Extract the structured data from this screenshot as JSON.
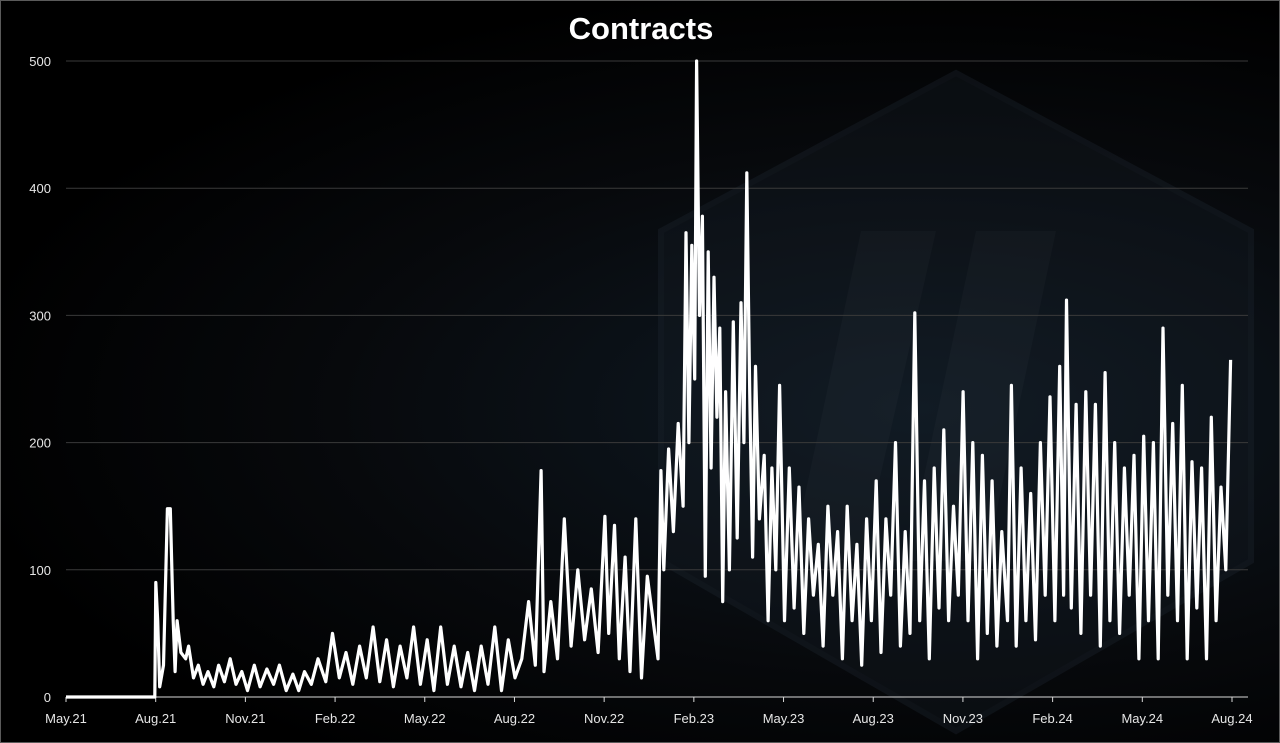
{
  "chart_data": {
    "type": "line",
    "title": "Contracts",
    "xlabel": "",
    "ylabel": "",
    "ylim": [
      0,
      500
    ],
    "y_ticks": [
      0,
      100,
      200,
      300,
      400,
      500
    ],
    "x_ticks": [
      "May.21",
      "Aug.21",
      "Nov.21",
      "Feb.22",
      "May.22",
      "Aug.22",
      "Nov.22",
      "Feb.23",
      "May.23",
      "Aug.23",
      "Nov.23",
      "Feb.24",
      "May.24",
      "Aug.24"
    ],
    "grid": "horizontal",
    "line_color": "#ffffff",
    "x_start": "2021-05-01",
    "x_end": "2024-09-06",
    "series": [
      {
        "points": [
          [
            "2021-05-01",
            0
          ],
          [
            "2021-08-01",
            0
          ],
          [
            "2021-08-02",
            90
          ],
          [
            "2021-08-04",
            60
          ],
          [
            "2021-08-06",
            8
          ],
          [
            "2021-08-10",
            25
          ],
          [
            "2021-08-14",
            148
          ],
          [
            "2021-08-17",
            148
          ],
          [
            "2021-08-20",
            60
          ],
          [
            "2021-08-22",
            20
          ],
          [
            "2021-08-24",
            60
          ],
          [
            "2021-08-28",
            35
          ],
          [
            "2021-09-02",
            30
          ],
          [
            "2021-09-05",
            40
          ],
          [
            "2021-09-10",
            15
          ],
          [
            "2021-09-15",
            25
          ],
          [
            "2021-09-20",
            10
          ],
          [
            "2021-09-25",
            20
          ],
          [
            "2021-10-01",
            8
          ],
          [
            "2021-10-06",
            25
          ],
          [
            "2021-10-12",
            12
          ],
          [
            "2021-10-18",
            30
          ],
          [
            "2021-10-24",
            10
          ],
          [
            "2021-10-30",
            20
          ],
          [
            "2021-11-05",
            5
          ],
          [
            "2021-11-12",
            25
          ],
          [
            "2021-11-18",
            8
          ],
          [
            "2021-11-25",
            22
          ],
          [
            "2021-12-02",
            10
          ],
          [
            "2021-12-08",
            25
          ],
          [
            "2021-12-15",
            5
          ],
          [
            "2021-12-22",
            18
          ],
          [
            "2021-12-28",
            5
          ],
          [
            "2022-01-03",
            20
          ],
          [
            "2022-01-10",
            10
          ],
          [
            "2022-01-17",
            30
          ],
          [
            "2022-01-25",
            12
          ],
          [
            "2022-02-01",
            50
          ],
          [
            "2022-02-08",
            15
          ],
          [
            "2022-02-15",
            35
          ],
          [
            "2022-02-22",
            10
          ],
          [
            "2022-03-01",
            40
          ],
          [
            "2022-03-08",
            15
          ],
          [
            "2022-03-15",
            55
          ],
          [
            "2022-03-22",
            12
          ],
          [
            "2022-03-29",
            45
          ],
          [
            "2022-04-05",
            8
          ],
          [
            "2022-04-12",
            40
          ],
          [
            "2022-04-19",
            15
          ],
          [
            "2022-04-26",
            55
          ],
          [
            "2022-05-03",
            10
          ],
          [
            "2022-05-10",
            45
          ],
          [
            "2022-05-17",
            5
          ],
          [
            "2022-05-24",
            55
          ],
          [
            "2022-05-31",
            10
          ],
          [
            "2022-06-07",
            40
          ],
          [
            "2022-06-14",
            8
          ],
          [
            "2022-06-21",
            35
          ],
          [
            "2022-06-28",
            5
          ],
          [
            "2022-07-05",
            40
          ],
          [
            "2022-07-12",
            10
          ],
          [
            "2022-07-19",
            55
          ],
          [
            "2022-07-26",
            5
          ],
          [
            "2022-08-02",
            45
          ],
          [
            "2022-08-09",
            15
          ],
          [
            "2022-08-16",
            30
          ],
          [
            "2022-08-23",
            75
          ],
          [
            "2022-08-30",
            25
          ],
          [
            "2022-09-05",
            178
          ],
          [
            "2022-09-08",
            20
          ],
          [
            "2022-09-15",
            75
          ],
          [
            "2022-09-22",
            30
          ],
          [
            "2022-09-29",
            140
          ],
          [
            "2022-10-06",
            40
          ],
          [
            "2022-10-13",
            100
          ],
          [
            "2022-10-20",
            45
          ],
          [
            "2022-10-27",
            85
          ],
          [
            "2022-11-03",
            35
          ],
          [
            "2022-11-10",
            142
          ],
          [
            "2022-11-14",
            50
          ],
          [
            "2022-11-20",
            135
          ],
          [
            "2022-11-25",
            30
          ],
          [
            "2022-12-01",
            110
          ],
          [
            "2022-12-06",
            20
          ],
          [
            "2022-12-12",
            140
          ],
          [
            "2022-12-18",
            15
          ],
          [
            "2022-12-24",
            95
          ],
          [
            "2022-12-30",
            60
          ],
          [
            "2023-01-04",
            30
          ],
          [
            "2023-01-07",
            178
          ],
          [
            "2023-01-10",
            100
          ],
          [
            "2023-01-15",
            195
          ],
          [
            "2023-01-20",
            130
          ],
          [
            "2023-01-25",
            215
          ],
          [
            "2023-01-30",
            150
          ],
          [
            "2023-02-02",
            365
          ],
          [
            "2023-02-05",
            200
          ],
          [
            "2023-02-08",
            355
          ],
          [
            "2023-02-11",
            250
          ],
          [
            "2023-02-13",
            500
          ],
          [
            "2023-02-16",
            300
          ],
          [
            "2023-02-19",
            378
          ],
          [
            "2023-02-22",
            95
          ],
          [
            "2023-02-25",
            350
          ],
          [
            "2023-02-28",
            180
          ],
          [
            "2023-03-03",
            330
          ],
          [
            "2023-03-06",
            220
          ],
          [
            "2023-03-09",
            290
          ],
          [
            "2023-03-12",
            75
          ],
          [
            "2023-03-15",
            240
          ],
          [
            "2023-03-19",
            100
          ],
          [
            "2023-03-23",
            295
          ],
          [
            "2023-03-27",
            125
          ],
          [
            "2023-03-31",
            310
          ],
          [
            "2023-04-03",
            200
          ],
          [
            "2023-04-06",
            412
          ],
          [
            "2023-04-09",
            240
          ],
          [
            "2023-04-12",
            110
          ],
          [
            "2023-04-15",
            260
          ],
          [
            "2023-04-19",
            140
          ],
          [
            "2023-04-24",
            190
          ],
          [
            "2023-04-28",
            60
          ],
          [
            "2023-05-02",
            180
          ],
          [
            "2023-05-06",
            100
          ],
          [
            "2023-05-10",
            245
          ],
          [
            "2023-05-15",
            60
          ],
          [
            "2023-05-20",
            180
          ],
          [
            "2023-05-25",
            70
          ],
          [
            "2023-05-30",
            165
          ],
          [
            "2023-06-04",
            50
          ],
          [
            "2023-06-09",
            140
          ],
          [
            "2023-06-14",
            80
          ],
          [
            "2023-06-19",
            120
          ],
          [
            "2023-06-24",
            40
          ],
          [
            "2023-06-29",
            150
          ],
          [
            "2023-07-04",
            80
          ],
          [
            "2023-07-09",
            130
          ],
          [
            "2023-07-14",
            30
          ],
          [
            "2023-07-19",
            150
          ],
          [
            "2023-07-24",
            60
          ],
          [
            "2023-07-29",
            120
          ],
          [
            "2023-08-03",
            25
          ],
          [
            "2023-08-08",
            140
          ],
          [
            "2023-08-13",
            60
          ],
          [
            "2023-08-18",
            170
          ],
          [
            "2023-08-23",
            35
          ],
          [
            "2023-08-28",
            140
          ],
          [
            "2023-09-02",
            80
          ],
          [
            "2023-09-07",
            200
          ],
          [
            "2023-09-12",
            40
          ],
          [
            "2023-09-17",
            130
          ],
          [
            "2023-09-22",
            50
          ],
          [
            "2023-09-27",
            302
          ],
          [
            "2023-10-02",
            60
          ],
          [
            "2023-10-07",
            170
          ],
          [
            "2023-10-12",
            30
          ],
          [
            "2023-10-17",
            180
          ],
          [
            "2023-10-22",
            70
          ],
          [
            "2023-10-27",
            210
          ],
          [
            "2023-11-01",
            60
          ],
          [
            "2023-11-06",
            150
          ],
          [
            "2023-11-11",
            80
          ],
          [
            "2023-11-16",
            240
          ],
          [
            "2023-11-21",
            60
          ],
          [
            "2023-11-26",
            200
          ],
          [
            "2023-12-01",
            30
          ],
          [
            "2023-12-06",
            190
          ],
          [
            "2023-12-11",
            50
          ],
          [
            "2023-12-16",
            170
          ],
          [
            "2023-12-21",
            40
          ],
          [
            "2023-12-26",
            130
          ],
          [
            "2024-01-01",
            60
          ],
          [
            "2024-01-05",
            245
          ],
          [
            "2024-01-10",
            40
          ],
          [
            "2024-01-15",
            180
          ],
          [
            "2024-01-20",
            60
          ],
          [
            "2024-01-25",
            160
          ],
          [
            "2024-01-30",
            45
          ],
          [
            "2024-02-04",
            200
          ],
          [
            "2024-02-09",
            80
          ],
          [
            "2024-02-14",
            236
          ],
          [
            "2024-02-19",
            60
          ],
          [
            "2024-02-24",
            260
          ],
          [
            "2024-02-28",
            80
          ],
          [
            "2024-03-02",
            312
          ],
          [
            "2024-03-07",
            70
          ],
          [
            "2024-03-12",
            230
          ],
          [
            "2024-03-17",
            50
          ],
          [
            "2024-03-22",
            240
          ],
          [
            "2024-03-27",
            80
          ],
          [
            "2024-04-01",
            230
          ],
          [
            "2024-04-06",
            40
          ],
          [
            "2024-04-11",
            255
          ],
          [
            "2024-04-16",
            60
          ],
          [
            "2024-04-21",
            200
          ],
          [
            "2024-04-26",
            50
          ],
          [
            "2024-05-01",
            180
          ],
          [
            "2024-05-06",
            80
          ],
          [
            "2024-05-11",
            190
          ],
          [
            "2024-05-16",
            30
          ],
          [
            "2024-05-21",
            205
          ],
          [
            "2024-05-26",
            60
          ],
          [
            "2024-05-31",
            200
          ],
          [
            "2024-06-05",
            30
          ],
          [
            "2024-06-10",
            290
          ],
          [
            "2024-06-15",
            80
          ],
          [
            "2024-06-20",
            215
          ],
          [
            "2024-06-25",
            60
          ],
          [
            "2024-06-30",
            245
          ],
          [
            "2024-07-05",
            30
          ],
          [
            "2024-07-10",
            185
          ],
          [
            "2024-07-15",
            70
          ],
          [
            "2024-07-20",
            180
          ],
          [
            "2024-07-25",
            30
          ],
          [
            "2024-07-30",
            220
          ],
          [
            "2024-08-04",
            60
          ],
          [
            "2024-08-09",
            165
          ],
          [
            "2024-08-14",
            100
          ],
          [
            "2024-08-19",
            265
          ]
        ]
      }
    ]
  }
}
